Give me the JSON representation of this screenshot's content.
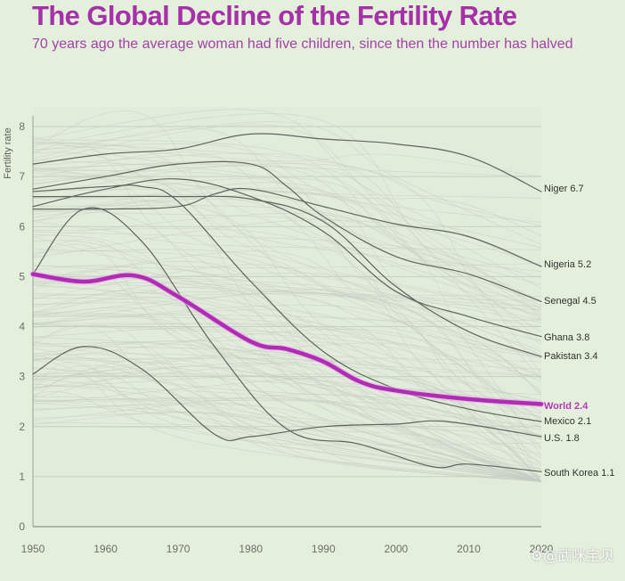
{
  "header": {
    "title": "The Global Decline of the Fertility Rate",
    "subtitle": "70 years ago the average woman had five children, since then the number has halved"
  },
  "watermark": "⚙@武咪宝贝",
  "colors": {
    "background": "#e4efdc",
    "title": "#a530a8",
    "world_line": "#b02cb5",
    "country_line": "#5f645e",
    "background_lines": "#c9d0c6"
  },
  "chart_data": {
    "type": "line",
    "title": "The Global Decline of the Fertility Rate",
    "subtitle": "70 years ago the average woman had five children, since then the number has halved",
    "xlabel": "",
    "ylabel": "Fertility rate",
    "xlim": [
      1950,
      2020
    ],
    "ylim": [
      0,
      8
    ],
    "x_ticks": [
      1950,
      1960,
      1970,
      1980,
      1990,
      2000,
      2010,
      2020
    ],
    "x_tick_labels": [
      "1950",
      "1960",
      "1970",
      "1980",
      "1990",
      "2000",
      "2010",
      "2020"
    ],
    "y_ticks": [
      0,
      1,
      2,
      3,
      4,
      5,
      6,
      7,
      8
    ],
    "y_tick_labels": [
      "0",
      "1",
      "2",
      "3",
      "4",
      "5",
      "6",
      "7",
      "8"
    ],
    "grid": true,
    "legend": "direct labels at right end of lines",
    "background_series_note": "many faint grey lines for all other countries",
    "series": [
      {
        "name": "Niger",
        "label": "Niger 6.7",
        "highlight": false,
        "x": [
          1950,
          1960,
          1970,
          1980,
          1990,
          2000,
          2010,
          2020
        ],
        "values": [
          7.25,
          7.45,
          7.55,
          7.85,
          7.75,
          7.65,
          7.4,
          6.7
        ]
      },
      {
        "name": "Nigeria",
        "label": "Nigeria 5.2",
        "highlight": false,
        "x": [
          1950,
          1960,
          1970,
          1975,
          1980,
          1990,
          2000,
          2010,
          2020
        ],
        "values": [
          6.35,
          6.35,
          6.4,
          6.65,
          6.75,
          6.4,
          6.05,
          5.8,
          5.2
        ]
      },
      {
        "name": "Senegal",
        "label": "Senegal 4.5",
        "highlight": false,
        "x": [
          1950,
          1960,
          1970,
          1980,
          1985,
          1990,
          2000,
          2010,
          2020
        ],
        "values": [
          6.75,
          7.0,
          7.25,
          7.25,
          6.8,
          6.2,
          5.4,
          5.05,
          4.5
        ]
      },
      {
        "name": "Ghana",
        "label": "Ghana 3.8",
        "highlight": false,
        "x": [
          1950,
          1960,
          1970,
          1980,
          1990,
          2000,
          2010,
          2020
        ],
        "values": [
          6.4,
          6.75,
          6.95,
          6.6,
          5.9,
          4.7,
          4.2,
          3.8
        ]
      },
      {
        "name": "Pakistan",
        "label": "Pakistan 3.4",
        "highlight": false,
        "x": [
          1950,
          1960,
          1970,
          1980,
          1990,
          2000,
          2010,
          2020
        ],
        "values": [
          6.6,
          6.6,
          6.6,
          6.55,
          6.1,
          4.8,
          3.9,
          3.4
        ]
      },
      {
        "name": "World",
        "label": "World 2.4",
        "highlight": true,
        "x": [
          1950,
          1957,
          1964,
          1970,
          1980,
          1985,
          1990,
          1995,
          2000,
          2010,
          2020
        ],
        "values": [
          5.05,
          4.9,
          5.02,
          4.6,
          3.7,
          3.55,
          3.3,
          2.9,
          2.72,
          2.55,
          2.45
        ]
      },
      {
        "name": "Mexico",
        "label": "Mexico 2.1",
        "highlight": false,
        "x": [
          1950,
          1960,
          1965,
          1970,
          1980,
          1990,
          2000,
          2010,
          2020
        ],
        "values": [
          6.7,
          6.8,
          6.8,
          6.5,
          4.9,
          3.5,
          2.75,
          2.35,
          2.1
        ]
      },
      {
        "name": "U.S.",
        "label": "U.S. 1.8",
        "highlight": false,
        "x": [
          1950,
          1957,
          1965,
          1975,
          1980,
          1990,
          2000,
          2007,
          2020
        ],
        "values": [
          3.05,
          3.6,
          3.15,
          1.85,
          1.8,
          2.0,
          2.05,
          2.1,
          1.8
        ]
      },
      {
        "name": "South Korea",
        "label": "South Korea 1.1",
        "highlight": false,
        "x": [
          1950,
          1957,
          1965,
          1975,
          1985,
          1995,
          2005,
          2010,
          2020
        ],
        "values": [
          5.05,
          6.35,
          5.7,
          3.6,
          1.95,
          1.65,
          1.2,
          1.25,
          1.1
        ]
      }
    ]
  }
}
